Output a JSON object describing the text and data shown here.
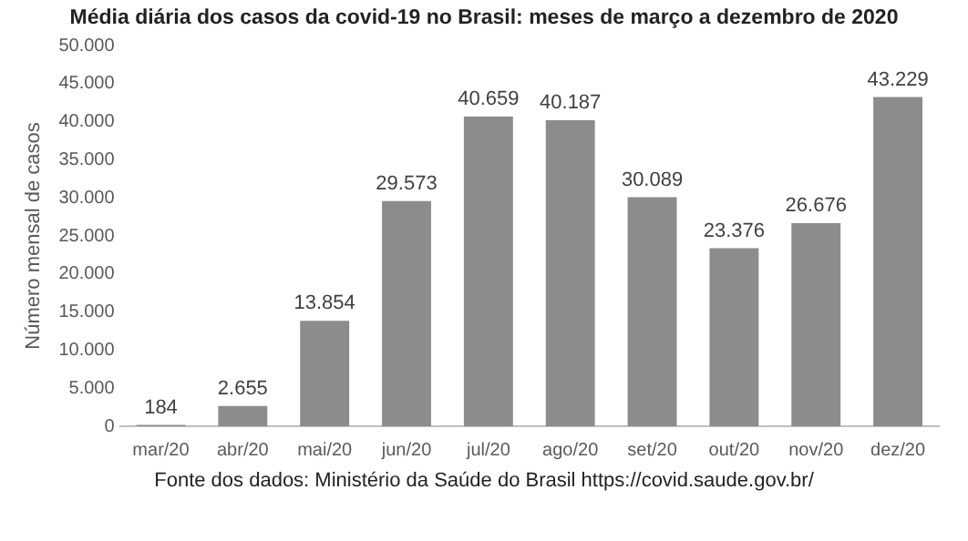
{
  "chart_data": {
    "type": "bar",
    "title": "Média diária dos casos da covid-19 no Brasil: meses de março a dezembro de 2020",
    "ylabel": "Número mensal de casos",
    "categories": [
      "mar/20",
      "abr/20",
      "mai/20",
      "jun/20",
      "jul/20",
      "ago/20",
      "set/20",
      "out/20",
      "nov/20",
      "dez/20"
    ],
    "values": [
      184,
      2655,
      13854,
      29573,
      40659,
      40187,
      30089,
      23376,
      26676,
      43229
    ],
    "value_labels": [
      "184",
      "2.655",
      "13.854",
      "29.573",
      "40.659",
      "40.187",
      "30.089",
      "23.376",
      "26.676",
      "43.229"
    ],
    "color": "#8c8c8c",
    "ylim": [
      0,
      50000
    ],
    "yticks": [
      0,
      {
        "value": 5000,
        "label": "5.000"
      },
      {
        "value": 10000,
        "label": "10.000"
      },
      {
        "value": 15000,
        "label": "15.000"
      },
      {
        "value": 20000,
        "label": "20.000"
      },
      {
        "value": 25000,
        "label": "25.000"
      },
      {
        "value": 30000,
        "label": "30.000"
      },
      {
        "value": 35000,
        "label": "35.000"
      },
      {
        "value": 40000,
        "label": "40.000"
      },
      {
        "value": 45000,
        "label": "45.000"
      },
      {
        "value": 50000,
        "label": "50.000"
      }
    ],
    "grid": false,
    "annotations": [
      "Fonte dos dados: Ministério da Saúde do Brasil https://covid.saude.gov.br/"
    ]
  }
}
